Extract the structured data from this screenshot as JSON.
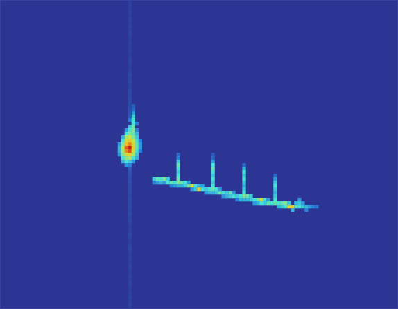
{
  "chart_data": {
    "type": "heatmap",
    "xlim": [
      0,
      115
    ],
    "ylim": [
      0,
      89
    ],
    "zlim": [
      0,
      1
    ],
    "tick_labels": false,
    "grid": false,
    "cells": [
      [
        38,
        56,
        0.35
      ],
      [
        38,
        55,
        0.45
      ],
      [
        37,
        54,
        0.3
      ],
      [
        38,
        54,
        0.5
      ],
      [
        38,
        53,
        0.5
      ],
      [
        39,
        53,
        0.3
      ],
      [
        37,
        52,
        0.45
      ],
      [
        38,
        52,
        0.55
      ],
      [
        36,
        51,
        0.35
      ],
      [
        37,
        51,
        0.5
      ],
      [
        38,
        51,
        0.6
      ],
      [
        39,
        51,
        0.3
      ],
      [
        36,
        50,
        0.5
      ],
      [
        37,
        50,
        0.6
      ],
      [
        38,
        50,
        0.55
      ],
      [
        39,
        50,
        0.4
      ],
      [
        35,
        49,
        0.4
      ],
      [
        36,
        49,
        0.65
      ],
      [
        37,
        49,
        0.7
      ],
      [
        38,
        49,
        0.6
      ],
      [
        39,
        49,
        0.45
      ],
      [
        35,
        48,
        0.5
      ],
      [
        36,
        48,
        0.75
      ],
      [
        37,
        48,
        0.8
      ],
      [
        38,
        48,
        0.7
      ],
      [
        39,
        48,
        0.5
      ],
      [
        40,
        48,
        0.3
      ],
      [
        34,
        47,
        0.35
      ],
      [
        35,
        47,
        0.6
      ],
      [
        36,
        47,
        0.85
      ],
      [
        37,
        47,
        0.9
      ],
      [
        38,
        47,
        0.75
      ],
      [
        39,
        47,
        0.55
      ],
      [
        40,
        47,
        0.35
      ],
      [
        34,
        46,
        0.4
      ],
      [
        35,
        46,
        0.7
      ],
      [
        36,
        46,
        0.95
      ],
      [
        37,
        46,
        1.0
      ],
      [
        38,
        46,
        0.8
      ],
      [
        39,
        46,
        0.55
      ],
      [
        40,
        46,
        0.35
      ],
      [
        34,
        45,
        0.4
      ],
      [
        35,
        45,
        0.65
      ],
      [
        36,
        45,
        0.9
      ],
      [
        37,
        45,
        0.95
      ],
      [
        38,
        45,
        0.75
      ],
      [
        39,
        45,
        0.5
      ],
      [
        40,
        45,
        0.3
      ],
      [
        34,
        44,
        0.35
      ],
      [
        35,
        44,
        0.6
      ],
      [
        36,
        44,
        0.75
      ],
      [
        37,
        44,
        0.8
      ],
      [
        38,
        44,
        0.65
      ],
      [
        39,
        44,
        0.45
      ],
      [
        35,
        43,
        0.5
      ],
      [
        36,
        43,
        0.6
      ],
      [
        37,
        43,
        0.65
      ],
      [
        38,
        43,
        0.5
      ],
      [
        39,
        43,
        0.4
      ],
      [
        35,
        42,
        0.4
      ],
      [
        36,
        42,
        0.5
      ],
      [
        37,
        42,
        0.45
      ],
      [
        38,
        42,
        0.35
      ],
      [
        36,
        41,
        0.35
      ],
      [
        37,
        41,
        0.3
      ],
      [
        38,
        57,
        0.2
      ],
      [
        38,
        58,
        0.15
      ],
      [
        44,
        37,
        0.45
      ],
      [
        44,
        36,
        0.3
      ],
      [
        45,
        37,
        0.55
      ],
      [
        45,
        36,
        0.35
      ],
      [
        46,
        37,
        0.5
      ],
      [
        46,
        36,
        0.4
      ],
      [
        47,
        37,
        0.6
      ],
      [
        47,
        36,
        0.35
      ],
      [
        48,
        37,
        0.45
      ],
      [
        48,
        36,
        0.5
      ],
      [
        49,
        36,
        0.55
      ],
      [
        49,
        35,
        0.3
      ],
      [
        50,
        36,
        0.5
      ],
      [
        50,
        35,
        0.35
      ],
      [
        51,
        44,
        0.2
      ],
      [
        51,
        43,
        0.3
      ],
      [
        51,
        42,
        0.45
      ],
      [
        51,
        41,
        0.55
      ],
      [
        51,
        40,
        0.5
      ],
      [
        51,
        39,
        0.45
      ],
      [
        51,
        38,
        0.5
      ],
      [
        51,
        37,
        0.55
      ],
      [
        51,
        36,
        0.6
      ],
      [
        51,
        35,
        0.4
      ],
      [
        52,
        36,
        0.55
      ],
      [
        52,
        35,
        0.4
      ],
      [
        53,
        36,
        0.5
      ],
      [
        53,
        35,
        0.45
      ],
      [
        54,
        35,
        0.6
      ],
      [
        54,
        36,
        0.35
      ],
      [
        55,
        35,
        0.7
      ],
      [
        55,
        34,
        0.35
      ],
      [
        56,
        35,
        0.5
      ],
      [
        56,
        34,
        0.45
      ],
      [
        57,
        34,
        0.8
      ],
      [
        57,
        35,
        0.4
      ],
      [
        58,
        34,
        0.5
      ],
      [
        58,
        35,
        0.35
      ],
      [
        59,
        34,
        0.45
      ],
      [
        59,
        33,
        0.35
      ],
      [
        60,
        34,
        0.5
      ],
      [
        60,
        33,
        0.4
      ],
      [
        61,
        44,
        0.15
      ],
      [
        61,
        43,
        0.2
      ],
      [
        61,
        42,
        0.35
      ],
      [
        61,
        41,
        0.5
      ],
      [
        61,
        40,
        0.55
      ],
      [
        61,
        39,
        0.5
      ],
      [
        61,
        38,
        0.45
      ],
      [
        61,
        37,
        0.5
      ],
      [
        61,
        36,
        0.45
      ],
      [
        61,
        35,
        0.5
      ],
      [
        61,
        34,
        0.55
      ],
      [
        61,
        33,
        0.4
      ],
      [
        62,
        34,
        0.5
      ],
      [
        62,
        33,
        0.45
      ],
      [
        63,
        33,
        0.55
      ],
      [
        63,
        34,
        0.35
      ],
      [
        64,
        33,
        0.5
      ],
      [
        64,
        32,
        0.35
      ],
      [
        65,
        33,
        0.45
      ],
      [
        65,
        32,
        0.4
      ],
      [
        66,
        33,
        0.55
      ],
      [
        66,
        32,
        0.45
      ],
      [
        67,
        32,
        0.5
      ],
      [
        67,
        33,
        0.35
      ],
      [
        68,
        32,
        0.45
      ],
      [
        68,
        31,
        0.3
      ],
      [
        69,
        32,
        0.5
      ],
      [
        69,
        31,
        0.4
      ],
      [
        70,
        41,
        0.2
      ],
      [
        70,
        40,
        0.4
      ],
      [
        70,
        39,
        0.5
      ],
      [
        70,
        38,
        0.45
      ],
      [
        70,
        37,
        0.5
      ],
      [
        70,
        36,
        0.45
      ],
      [
        70,
        35,
        0.4
      ],
      [
        70,
        34,
        0.45
      ],
      [
        70,
        33,
        0.5
      ],
      [
        70,
        32,
        0.6
      ],
      [
        70,
        31,
        0.4
      ],
      [
        71,
        32,
        0.55
      ],
      [
        71,
        31,
        0.4
      ],
      [
        72,
        32,
        0.45
      ],
      [
        72,
        31,
        0.45
      ],
      [
        73,
        31,
        0.5
      ],
      [
        73,
        30,
        0.35
      ],
      [
        74,
        31,
        0.55
      ],
      [
        74,
        30,
        0.4
      ],
      [
        75,
        31,
        0.75
      ],
      [
        75,
        30,
        0.5
      ],
      [
        76,
        31,
        0.5
      ],
      [
        76,
        30,
        0.45
      ],
      [
        77,
        30,
        0.55
      ],
      [
        77,
        31,
        0.35
      ],
      [
        78,
        30,
        0.5
      ],
      [
        79,
        38,
        0.2
      ],
      [
        79,
        37,
        0.35
      ],
      [
        79,
        36,
        0.45
      ],
      [
        79,
        35,
        0.5
      ],
      [
        79,
        34,
        0.45
      ],
      [
        79,
        33,
        0.4
      ],
      [
        79,
        32,
        0.45
      ],
      [
        79,
        31,
        0.5
      ],
      [
        79,
        30,
        0.55
      ],
      [
        80,
        30,
        0.5
      ],
      [
        80,
        29,
        0.4
      ],
      [
        81,
        30,
        0.55
      ],
      [
        81,
        29,
        0.45
      ],
      [
        82,
        30,
        0.6
      ],
      [
        82,
        29,
        0.5
      ],
      [
        83,
        29,
        0.75
      ],
      [
        83,
        30,
        0.45
      ],
      [
        84,
        29,
        0.8
      ],
      [
        84,
        28,
        0.4
      ],
      [
        85,
        29,
        0.55
      ],
      [
        85,
        30,
        0.4
      ],
      [
        86,
        29,
        0.5
      ],
      [
        86,
        30,
        0.45
      ],
      [
        86,
        31,
        0.35
      ],
      [
        87,
        29,
        0.45
      ],
      [
        87,
        30,
        0.35
      ],
      [
        88,
        29,
        0.4
      ],
      [
        88,
        28,
        0.3
      ],
      [
        89,
        29,
        0.35
      ],
      [
        90,
        29,
        0.3
      ],
      [
        91,
        29,
        0.25
      ],
      [
        37,
        0,
        0.05
      ],
      [
        37,
        1,
        0.06
      ],
      [
        37,
        2,
        0.05
      ],
      [
        37,
        3,
        0.07
      ],
      [
        37,
        4,
        0.06
      ],
      [
        37,
        5,
        0.05
      ],
      [
        37,
        6,
        0.06
      ],
      [
        37,
        7,
        0.07
      ],
      [
        37,
        8,
        0.05
      ],
      [
        37,
        9,
        0.06
      ],
      [
        37,
        10,
        0.05
      ],
      [
        37,
        11,
        0.06
      ],
      [
        37,
        12,
        0.07
      ],
      [
        37,
        13,
        0.05
      ],
      [
        37,
        14,
        0.06
      ],
      [
        37,
        15,
        0.05
      ],
      [
        37,
        16,
        0.06
      ],
      [
        37,
        17,
        0.07
      ],
      [
        37,
        18,
        0.06
      ],
      [
        37,
        19,
        0.05
      ],
      [
        37,
        20,
        0.06
      ],
      [
        37,
        21,
        0.07
      ],
      [
        37,
        22,
        0.06
      ],
      [
        37,
        23,
        0.05
      ],
      [
        37,
        24,
        0.06
      ],
      [
        37,
        25,
        0.07
      ],
      [
        37,
        26,
        0.06
      ],
      [
        37,
        27,
        0.08
      ],
      [
        37,
        28,
        0.07
      ],
      [
        37,
        29,
        0.08
      ],
      [
        37,
        30,
        0.07
      ],
      [
        37,
        31,
        0.08
      ],
      [
        37,
        32,
        0.07
      ],
      [
        37,
        33,
        0.09
      ],
      [
        37,
        34,
        0.08
      ],
      [
        37,
        35,
        0.09
      ],
      [
        37,
        36,
        0.1
      ],
      [
        37,
        37,
        0.09
      ],
      [
        37,
        38,
        0.1
      ],
      [
        37,
        39,
        0.12
      ],
      [
        37,
        40,
        0.15
      ],
      [
        37,
        55,
        0.15
      ],
      [
        37,
        56,
        0.12
      ],
      [
        37,
        57,
        0.1
      ],
      [
        37,
        58,
        0.09
      ],
      [
        37,
        59,
        0.08
      ],
      [
        37,
        60,
        0.08
      ],
      [
        37,
        61,
        0.07
      ],
      [
        37,
        62,
        0.08
      ],
      [
        37,
        63,
        0.07
      ],
      [
        37,
        64,
        0.06
      ],
      [
        37,
        65,
        0.07
      ],
      [
        37,
        66,
        0.06
      ],
      [
        37,
        67,
        0.07
      ],
      [
        37,
        68,
        0.06
      ],
      [
        37,
        69,
        0.05
      ],
      [
        37,
        70,
        0.06
      ],
      [
        37,
        71,
        0.07
      ],
      [
        37,
        72,
        0.06
      ],
      [
        37,
        73,
        0.05
      ],
      [
        37,
        74,
        0.06
      ],
      [
        37,
        75,
        0.05
      ],
      [
        37,
        76,
        0.06
      ],
      [
        37,
        77,
        0.05
      ],
      [
        37,
        78,
        0.06
      ],
      [
        37,
        79,
        0.07
      ],
      [
        37,
        80,
        0.05
      ],
      [
        37,
        81,
        0.06
      ],
      [
        37,
        82,
        0.05
      ],
      [
        37,
        83,
        0.06
      ],
      [
        37,
        84,
        0.05
      ],
      [
        37,
        85,
        0.06
      ],
      [
        37,
        86,
        0.05
      ],
      [
        37,
        87,
        0.06
      ],
      [
        37,
        88,
        0.05
      ]
    ]
  }
}
